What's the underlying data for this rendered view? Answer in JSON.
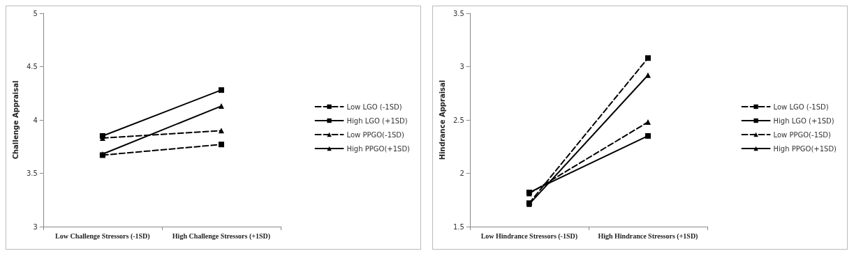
{
  "chart_data": [
    {
      "type": "line",
      "categories": [
        "Low Challenge Stressors (-1SD)",
        "High Challenge Stressors (+1SD)"
      ],
      "ylabel": "Challenge Appraisal",
      "ylim": [
        3,
        5
      ],
      "yticks": [
        3,
        3.5,
        4,
        4.5,
        5
      ],
      "grid": false,
      "legend": "right",
      "series": [
        {
          "name": "Low LGO (-1SD)",
          "color": "#000000",
          "marker": "square",
          "line_style": "dashed",
          "values": [
            3.67,
            3.77
          ]
        },
        {
          "name": "High LGO (+1SD)",
          "color": "#000000",
          "marker": "square",
          "line_style": "solid",
          "values": [
            3.85,
            4.28
          ]
        },
        {
          "name": "Low PPGO(-1SD)",
          "color": "#000000",
          "marker": "triangle",
          "line_style": "dashed",
          "values": [
            3.83,
            3.9
          ]
        },
        {
          "name": "High PPGO(+1SD)",
          "color": "#000000",
          "marker": "triangle",
          "line_style": "solid",
          "values": [
            3.68,
            4.13
          ]
        }
      ]
    },
    {
      "type": "line",
      "categories": [
        "Low Hindrance Stressors (-1SD)",
        "High Hindrance Stressors (+1SD)"
      ],
      "ylabel": "Hindrance Appraisal",
      "ylim": [
        1.5,
        3.5
      ],
      "yticks": [
        1.5,
        2,
        2.5,
        3,
        3.5
      ],
      "grid": false,
      "legend": "right",
      "series": [
        {
          "name": "Low LGO (-1SD)",
          "color": "#000000",
          "marker": "square",
          "line_style": "dashed",
          "values": [
            1.72,
            3.08
          ]
        },
        {
          "name": "High LGO (+1SD)",
          "color": "#000000",
          "marker": "square",
          "line_style": "solid",
          "values": [
            1.82,
            2.35
          ]
        },
        {
          "name": "Low PPGO(-1SD)",
          "color": "#000000",
          "marker": "triangle",
          "line_style": "dashed",
          "values": [
            1.81,
            2.48
          ]
        },
        {
          "name": "High PPGO(+1SD)",
          "color": "#000000",
          "marker": "triangle",
          "line_style": "solid",
          "values": [
            1.71,
            2.92
          ]
        }
      ]
    }
  ]
}
